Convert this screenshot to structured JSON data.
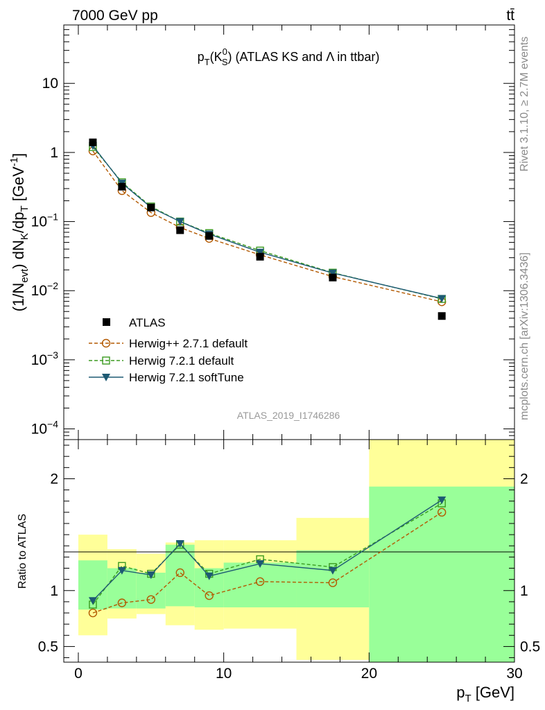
{
  "header": {
    "energy_label": "7000 GeV pp",
    "process_label": "tt̄"
  },
  "side_labels": {
    "rivet": "Rivet 3.1.10, ≥ 2.7M events",
    "mcplots": "mcplots.cern.ch [arXiv:1306.3436]"
  },
  "colors": {
    "atlas": "#000000",
    "herwigpp": "#b35900",
    "herwig721_default": "#3a9a1f",
    "herwig721_softtune": "#1d5a73",
    "band_yellow": "#ffff99",
    "band_green": "#99ff99"
  },
  "chart_data": [
    {
      "panel": "main",
      "type": "scatter",
      "title": {
        "main": "p",
        "sub1": "T",
        "paren_open": "(K",
        "sup": "0",
        "sub2": "S",
        "paren_close": ")",
        "rest": " (ATLAS KS and Λ in ttbar)"
      },
      "ylabel": {
        "p1": "(1/N",
        "s1": "evt",
        "p2": ") dN",
        "s2": "K",
        "p3": "/dp",
        "s3": "T",
        "p4": " [GeV",
        "sup": "-1",
        "p5": "]"
      },
      "xlabel": {
        "p": "p",
        "sub": "T",
        "rest": " [GeV]"
      },
      "yscale": "log",
      "xlim": [
        -1,
        30
      ],
      "ylim": [
        7e-05,
        70
      ],
      "y_tick_labels": [
        {
          "value": 10,
          "base": "10",
          "exp": ""
        },
        {
          "value": 1,
          "base": "1",
          "exp": ""
        },
        {
          "value": 0.1,
          "base": "10",
          "exp": "−1"
        },
        {
          "value": 0.01,
          "base": "10",
          "exp": "−2"
        },
        {
          "value": 0.001,
          "base": "10",
          "exp": "−3"
        },
        {
          "value": 0.0001,
          "base": "10",
          "exp": "−4"
        }
      ],
      "x_tick_labels": [
        "0",
        "10",
        "20",
        "30"
      ],
      "x": [
        1,
        3,
        5,
        7,
        9,
        12.5,
        17.5,
        25
      ],
      "series": [
        {
          "name": "ATLAS",
          "values": [
            1.4,
            0.32,
            0.16,
            0.075,
            0.062,
            0.031,
            0.0155,
            0.0043
          ]
        },
        {
          "name": "Herwig++ 2.7.1 default",
          "values": [
            1.05,
            0.28,
            0.135,
            0.082,
            0.057,
            0.033,
            0.016,
            0.0069
          ]
        },
        {
          "name": "Herwig 7.2.1 default",
          "values": [
            1.2,
            0.37,
            0.165,
            0.1,
            0.068,
            0.038,
            0.0182,
            0.0076
          ]
        },
        {
          "name": "Herwig 7.2.1 softTune",
          "values": [
            1.25,
            0.36,
            0.16,
            0.1,
            0.066,
            0.036,
            0.018,
            0.0077
          ]
        }
      ],
      "legend_position": "lower-left",
      "annotation": "ATLAS_2019_I1746286"
    },
    {
      "panel": "ratio",
      "type": "line",
      "ylabel": "Ratio to ATLAS",
      "ylim": [
        0.36,
        2.35
      ],
      "y_tick_labels": [
        {
          "value": 0.5,
          "label": "0.5"
        },
        {
          "value": 1,
          "label": "1"
        },
        {
          "value": 2,
          "label": "2"
        }
      ],
      "bins": [
        [
          0,
          2
        ],
        [
          2,
          4
        ],
        [
          4,
          6
        ],
        [
          6,
          8
        ],
        [
          8,
          10
        ],
        [
          10,
          15
        ],
        [
          15,
          20
        ],
        [
          20,
          30
        ]
      ],
      "band_total": [
        [
          0.6,
          1.5
        ],
        [
          0.75,
          1.37
        ],
        [
          0.79,
          1.33
        ],
        [
          0.69,
          1.43
        ],
        [
          0.65,
          1.45
        ],
        [
          0.66,
          1.45
        ],
        [
          0.38,
          1.65
        ],
        [
          0.36,
          2.35
        ]
      ],
      "band_stat": [
        [
          0.83,
          1.27
        ],
        [
          0.84,
          1.2
        ],
        [
          0.84,
          1.16
        ],
        [
          0.86,
          1.41
        ],
        [
          0.85,
          1.2
        ],
        [
          0.85,
          1.25
        ],
        [
          0.85,
          1.36
        ],
        [
          0.36,
          1.93
        ]
      ],
      "x": [
        1,
        3,
        5,
        7,
        9,
        12.5,
        17.5,
        25
      ],
      "series": [
        {
          "name": "Herwig++ 2.7.1 default",
          "values": [
            0.8,
            0.89,
            0.92,
            1.16,
            0.955,
            1.08,
            1.07,
            1.7
          ]
        },
        {
          "name": "Herwig 7.2.1 default",
          "values": [
            0.875,
            1.22,
            1.15,
            1.41,
            1.15,
            1.28,
            1.21,
            1.78
          ]
        },
        {
          "name": "Herwig 7.2.1 softTune",
          "values": [
            0.91,
            1.18,
            1.14,
            1.42,
            1.13,
            1.24,
            1.18,
            1.81
          ]
        }
      ]
    }
  ]
}
